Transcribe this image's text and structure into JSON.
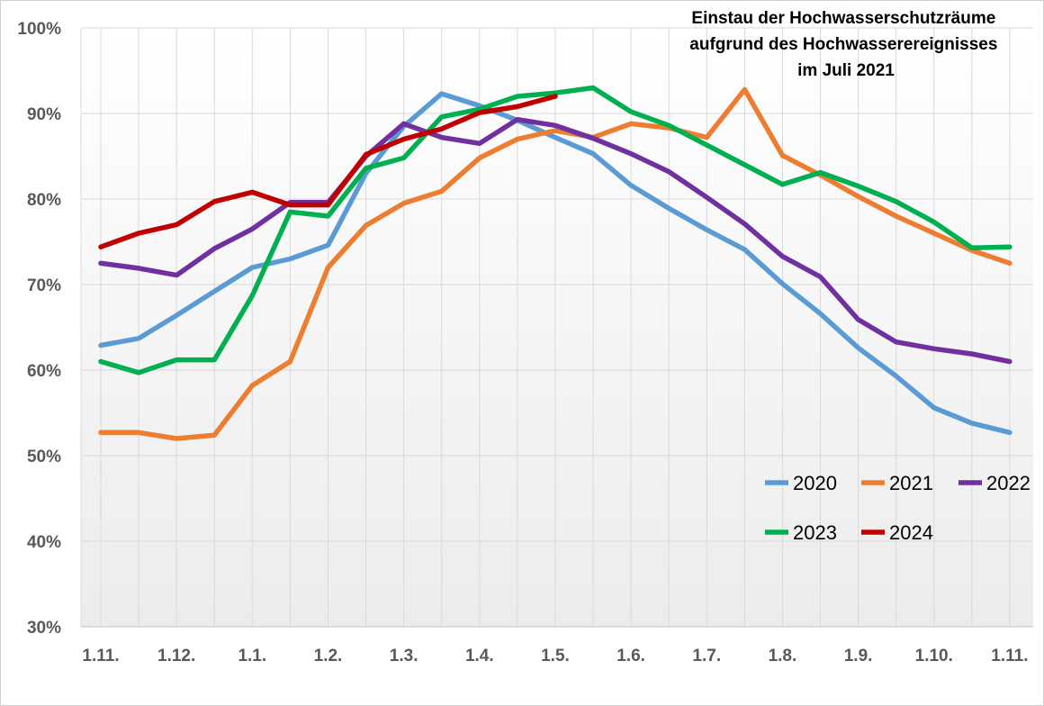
{
  "chart_data": {
    "type": "line",
    "title_lines": [
      "Einstau der Hochwasserschutzräume",
      "aufgrund des Hochwasserereignisses",
      "im Juli 2021"
    ],
    "xlabel": "",
    "ylabel": "",
    "ylim": [
      30,
      100
    ],
    "y_ticks": [
      30,
      40,
      50,
      60,
      70,
      80,
      90,
      100
    ],
    "y_tick_suffix": "%",
    "x_points": 25,
    "x_tick_labels": [
      {
        "at": 0,
        "label": "1.11."
      },
      {
        "at": 2,
        "label": "1.12."
      },
      {
        "at": 4,
        "label": "1.1."
      },
      {
        "at": 6,
        "label": "1.2."
      },
      {
        "at": 8,
        "label": "1.3."
      },
      {
        "at": 10,
        "label": "1.4."
      },
      {
        "at": 12,
        "label": "1.5."
      },
      {
        "at": 14,
        "label": "1.6."
      },
      {
        "at": 16,
        "label": "1.7."
      },
      {
        "at": 18,
        "label": "1.8."
      },
      {
        "at": 20,
        "label": "1.9."
      },
      {
        "at": 22,
        "label": "1.10."
      },
      {
        "at": 24,
        "label": "1.11."
      }
    ],
    "grid": true,
    "legend_position": "bottom-right",
    "series": [
      {
        "name": "2020",
        "color": "#5b9bd5",
        "values": [
          62.9,
          63.7,
          66.4,
          69.2,
          72.0,
          73.0,
          74.6,
          83.0,
          88.5,
          92.3,
          90.9,
          89.2,
          87.2,
          85.3,
          81.6,
          78.9,
          76.4,
          74.1,
          70.1,
          66.6,
          62.6,
          59.3,
          55.6,
          53.8,
          52.7
        ]
      },
      {
        "name": "2021",
        "color": "#ed7d31",
        "values": [
          52.7,
          52.7,
          52.0,
          52.4,
          58.2,
          61.0,
          72.0,
          76.9,
          79.5,
          80.9,
          84.8,
          87.0,
          88.0,
          87.2,
          88.8,
          88.3,
          87.2,
          92.8,
          85.1,
          82.8,
          80.3,
          78.0,
          76.0,
          74.0,
          72.5
        ]
      },
      {
        "name": "2022",
        "color": "#7030a0",
        "values": [
          72.5,
          71.9,
          71.1,
          74.2,
          76.5,
          79.6,
          79.6,
          85.0,
          88.8,
          87.2,
          86.5,
          89.3,
          88.6,
          87.1,
          85.3,
          83.2,
          80.2,
          77.1,
          73.3,
          70.9,
          65.9,
          63.3,
          62.5,
          61.9,
          61.0
        ]
      },
      {
        "name": "2023",
        "color": "#00b050",
        "values": [
          61.0,
          59.7,
          61.2,
          61.2,
          68.7,
          78.5,
          78.0,
          83.6,
          84.8,
          89.6,
          90.5,
          92.0,
          92.4,
          93.0,
          90.2,
          88.6,
          86.3,
          84.0,
          81.7,
          83.1,
          81.5,
          79.7,
          77.3,
          74.3,
          74.4
        ]
      },
      {
        "name": "2024",
        "color": "#c00000",
        "values": [
          74.4,
          76.0,
          77.0,
          79.7,
          80.8,
          79.3,
          79.3,
          85.2,
          87.0,
          88.2,
          90.1,
          90.8,
          92.0
        ]
      }
    ]
  }
}
